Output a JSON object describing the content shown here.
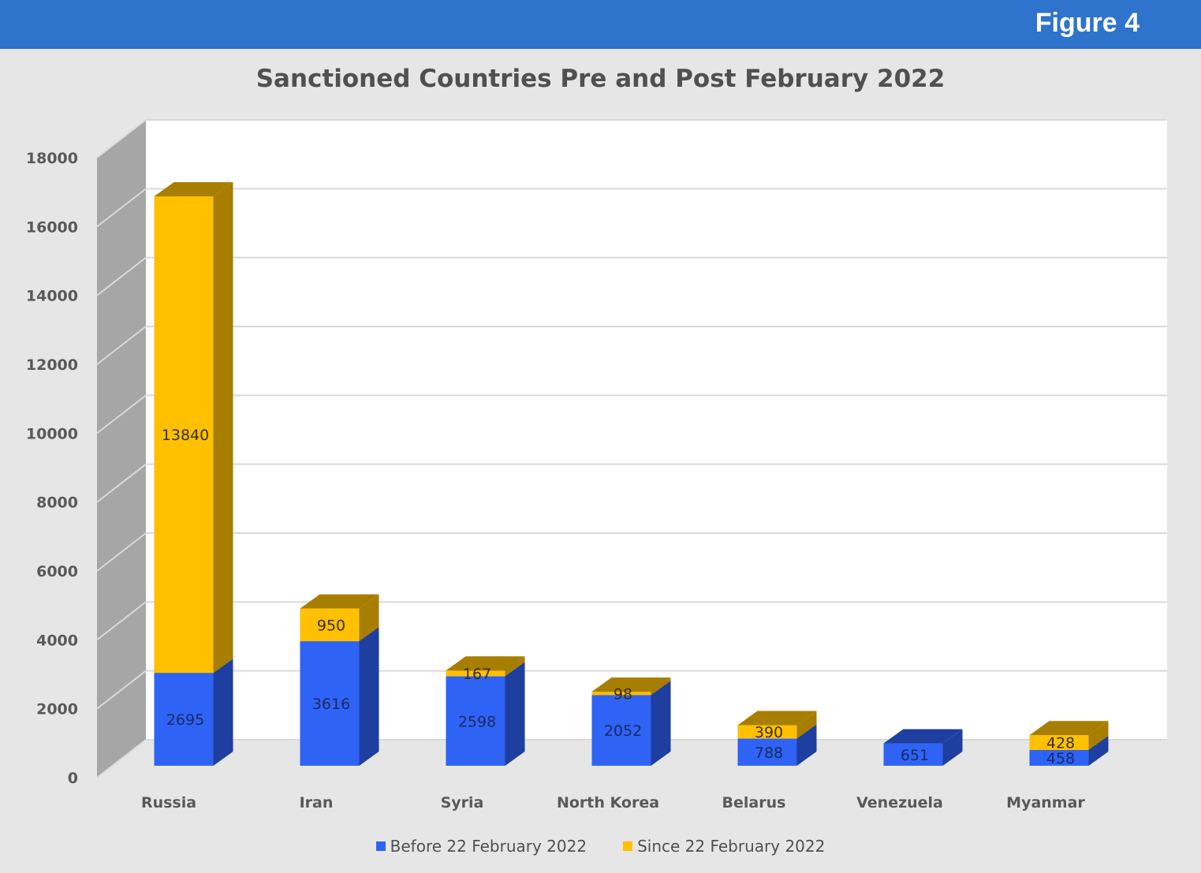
{
  "header": {
    "figure_label": "Figure 4"
  },
  "chart_data": {
    "type": "bar",
    "stacked": true,
    "three_d": true,
    "title": "Sanctioned Countries Pre and Post February 2022",
    "xlabel": "",
    "ylabel": "",
    "ylim": [
      0,
      18000
    ],
    "yticks": [
      0,
      2000,
      4000,
      6000,
      8000,
      10000,
      12000,
      14000,
      16000,
      18000
    ],
    "grid": true,
    "legend_position": "bottom",
    "categories": [
      "Russia",
      "Iran",
      "Syria",
      "North Korea",
      "Belarus",
      "Venezuela",
      "Myanmar"
    ],
    "series": [
      {
        "name": "Before 22 February 2022",
        "color": "#2f63f5",
        "values": [
          2695,
          3616,
          2598,
          2052,
          788,
          651,
          458
        ]
      },
      {
        "name": "Since 22 February 2022",
        "color": "#ffc000",
        "values": [
          13840,
          950,
          167,
          98,
          390,
          null,
          428
        ]
      }
    ]
  }
}
